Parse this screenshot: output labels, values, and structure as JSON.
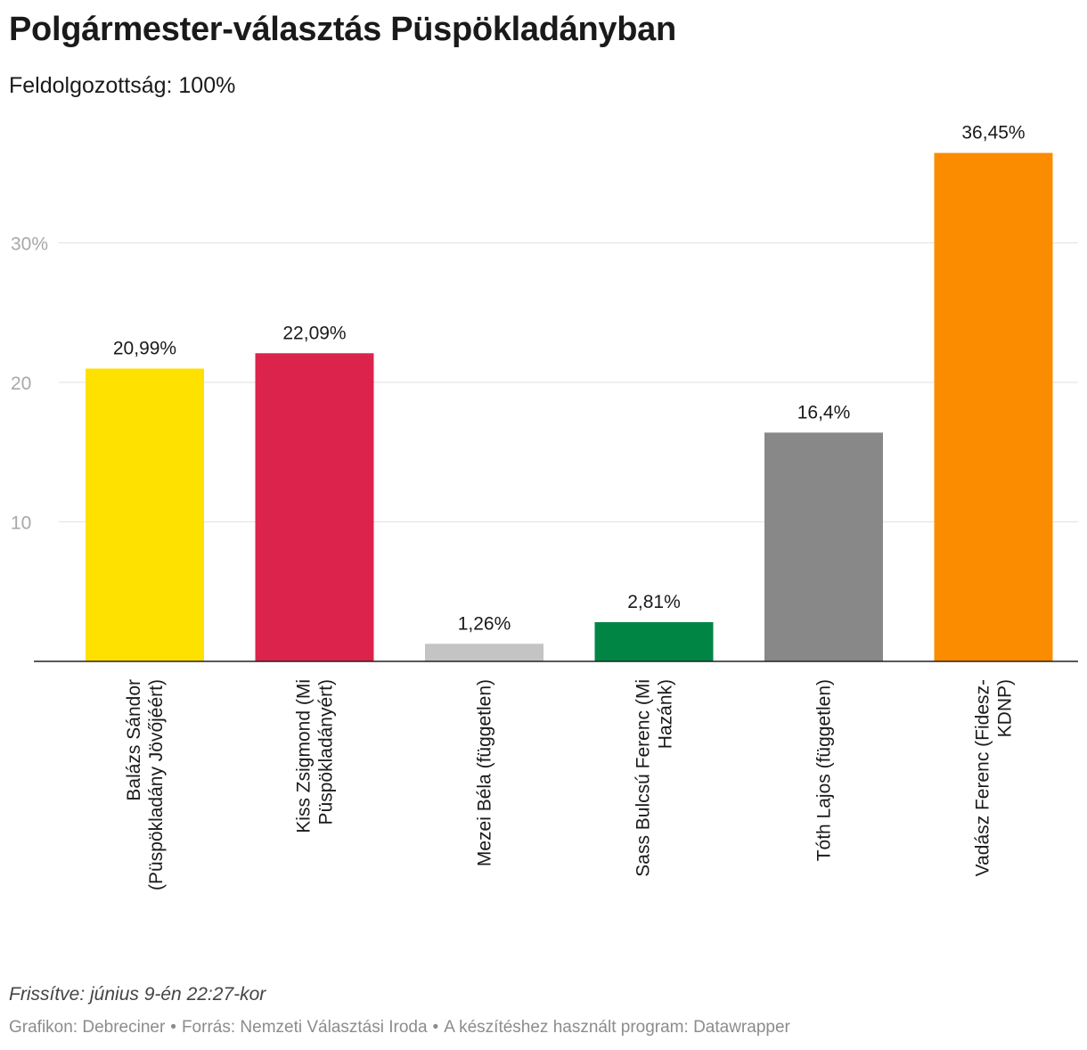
{
  "header": {
    "title": "Polgármester-választás Püspökladányban",
    "subtitle": "Feldolgozottság: 100%"
  },
  "footer": {
    "notes": "Frissítve: június 9-én 22:27-kor",
    "credit_chart": "Grafikon: Debreciner",
    "credit_source": "Forrás: Nemzeti Választási Iroda",
    "credit_tool": "A készítéshez használt program: Datawrapper",
    "separator": "•"
  },
  "chart_data": {
    "type": "bar",
    "title": "Polgármester-választás Püspökladányban",
    "subtitle": "Feldolgozottság: 100%",
    "xlabel": "",
    "ylabel": "",
    "ylim": [
      0,
      38
    ],
    "grid": true,
    "y_ticks": [
      {
        "value": 10,
        "label": "10"
      },
      {
        "value": 20,
        "label": "20"
      },
      {
        "value": 30,
        "label": "30%"
      }
    ],
    "categories": [
      [
        "Balázs Sándor",
        "(Püspökladány Jövőjéért)"
      ],
      [
        "Kiss Zsigmond (Mi",
        "Püspökladányért)"
      ],
      [
        "Mezei Béla (független)"
      ],
      [
        "Sass Bulcsú Ferenc (Mi",
        "Hazánk)"
      ],
      [
        "Tóth Lajos (független)"
      ],
      [
        "Vadász Ferenc (Fidesz-",
        "KDNP)"
      ]
    ],
    "values": [
      20.99,
      22.09,
      1.26,
      2.81,
      16.4,
      36.45
    ],
    "value_labels": [
      "20,99%",
      "22,09%",
      "1,26%",
      "2,81%",
      "16,4%",
      "36,45%"
    ],
    "colors": [
      "#ffe100",
      "#dc234c",
      "#c4c4c4",
      "#008545",
      "#888888",
      "#fb8c00"
    ]
  }
}
